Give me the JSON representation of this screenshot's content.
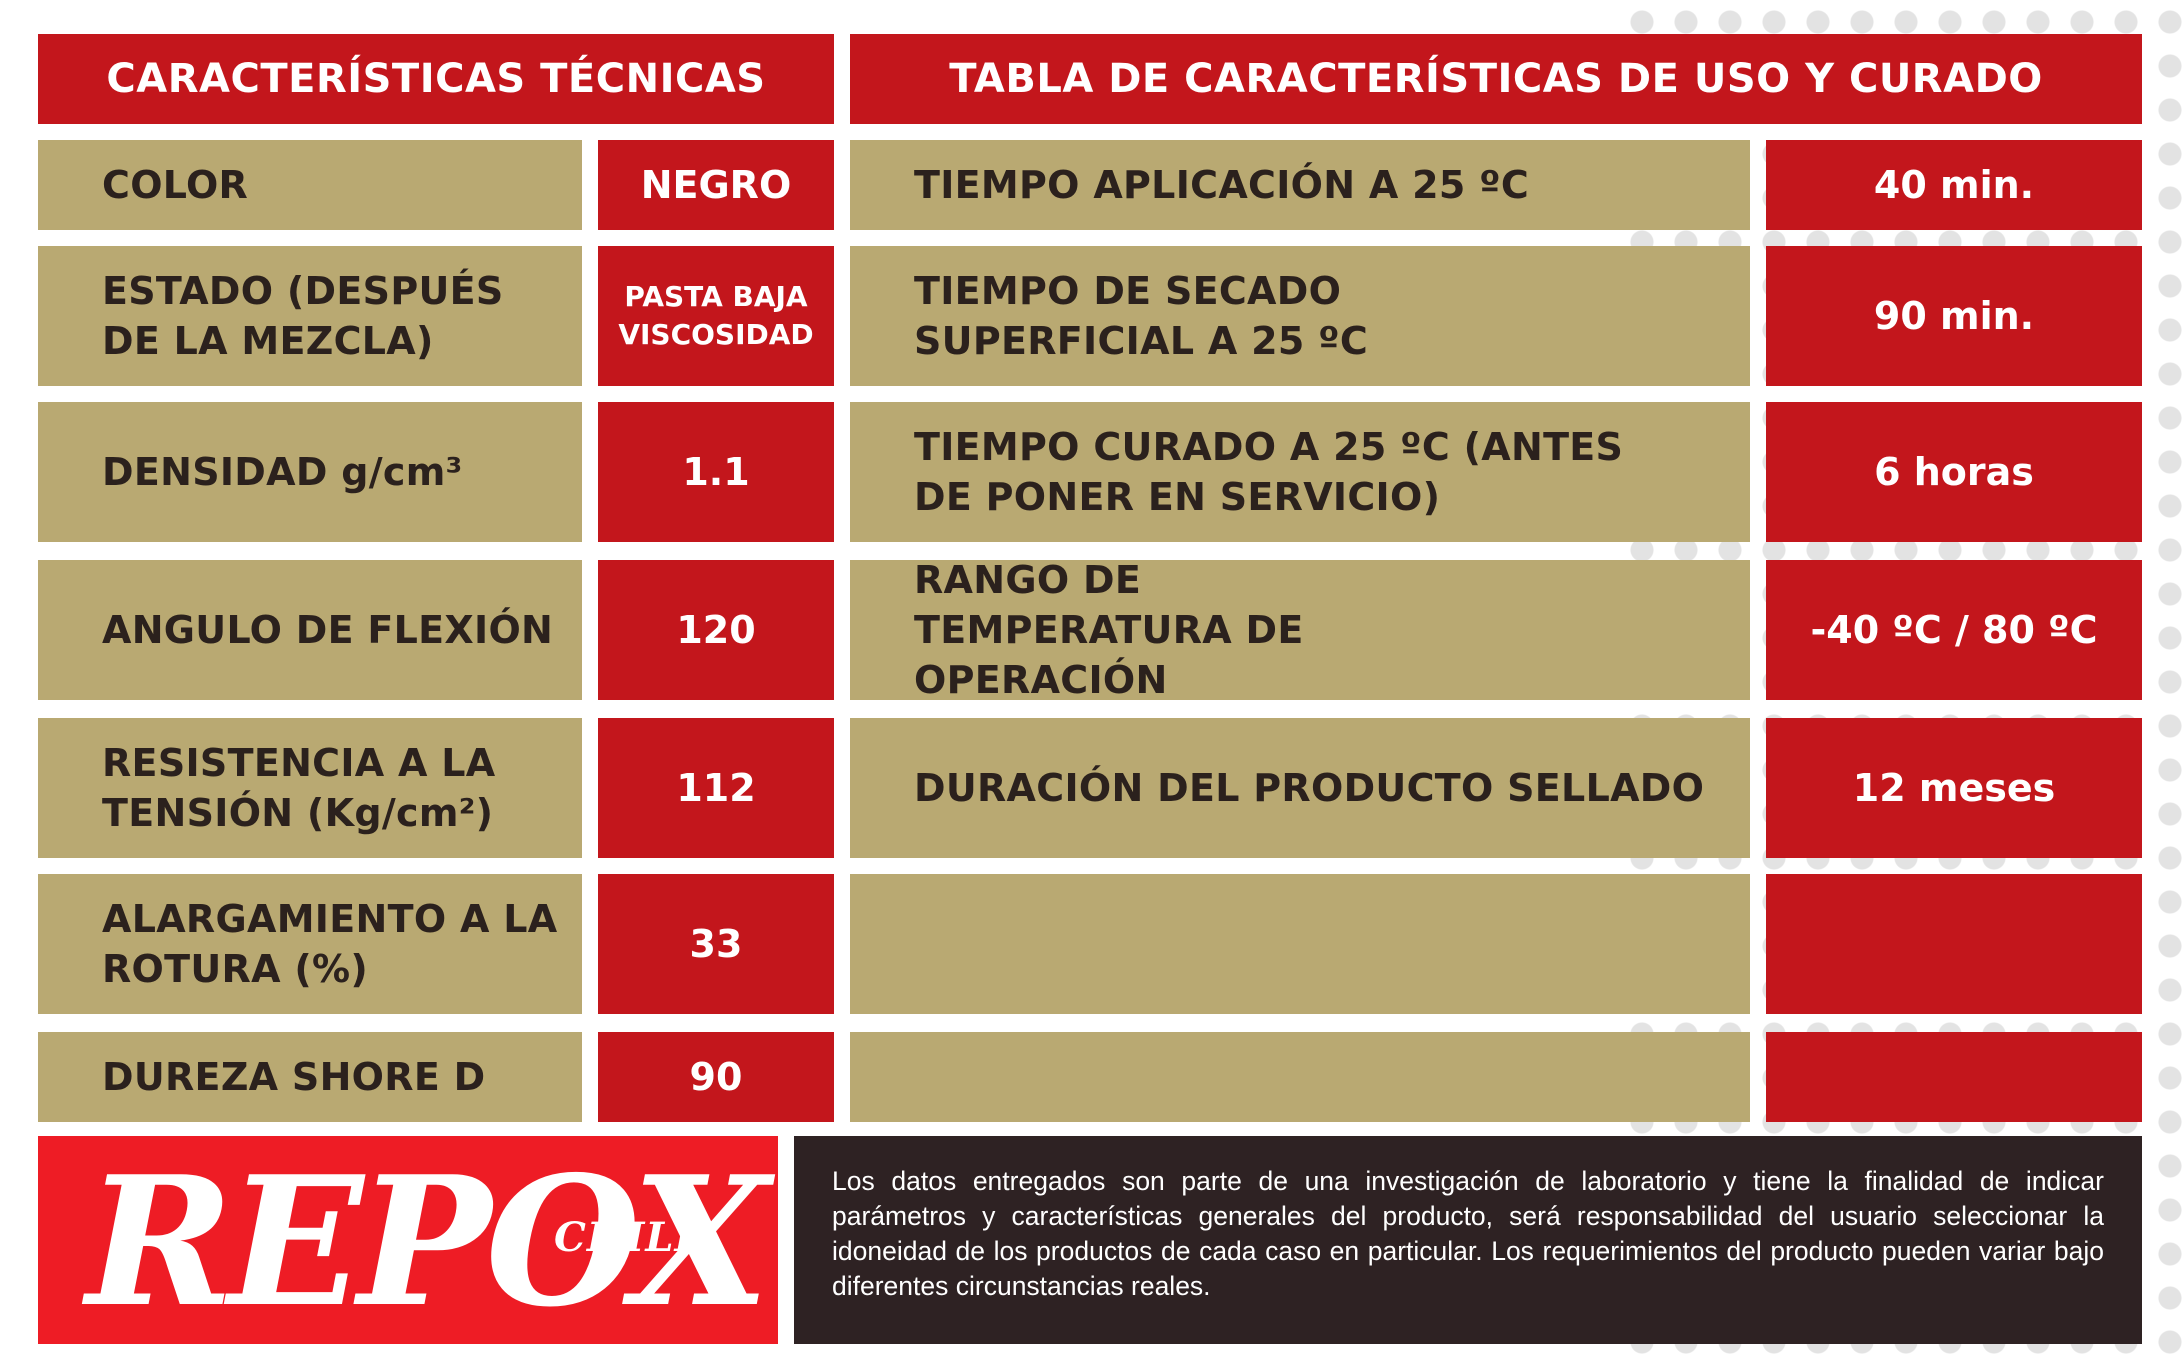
{
  "headers": {
    "left": "CARACTERÍSTICAS TÉCNICAS",
    "right": "TABLA DE CARACTERÍSTICAS DE USO Y CURADO"
  },
  "tech_rows": [
    {
      "label": "COLOR",
      "value": "NEGRO"
    },
    {
      "label": "ESTADO (DESPUÉS DE LA MEZCLA)",
      "value": "PASTA BAJA VISCOSIDAD"
    },
    {
      "label": "DENSIDAD g/cm³",
      "value": "1.1"
    },
    {
      "label": "ANGULO DE FLEXIÓN",
      "value": "120"
    },
    {
      "label": "RESISTENCIA A LA TENSIÓN (Kg/cm²)",
      "value": "112"
    },
    {
      "label": "ALARGAMIENTO A LA ROTURA (%)",
      "value": "33"
    },
    {
      "label": "DUREZA SHORE D",
      "value": "90"
    }
  ],
  "use_rows": [
    {
      "label": "TIEMPO APLICACIÓN A 25 ºC",
      "value": "40 min."
    },
    {
      "label": "TIEMPO DE SECADO SUPERFICIAL A 25 ºC",
      "value": "90 min."
    },
    {
      "label": "TIEMPO CURADO A 25 ºC (ANTES DE PONER EN SERVICIO)",
      "value": "6 horas"
    },
    {
      "label": "RANGO DE TEMPERATURA DE OPERACIÓN",
      "value": "-40 ºC / 80 ºC"
    },
    {
      "label": "DURACIÓN DEL PRODUCTO SELLADO",
      "value": "12 meses"
    },
    {
      "label": "",
      "value": ""
    },
    {
      "label": "",
      "value": ""
    }
  ],
  "logo": {
    "main": "REPOX",
    "sub": "CHILE"
  },
  "disclaimer": "Los datos entregados son parte de una investigación de laboratorio y tiene la finalidad de indicar parámetros y características generales del producto, será responsabilidad del usuario seleccionar la idoneidad de los productos de cada caso en particular. Los requerimientos del producto pueden variar bajo diferentes circunstancias reales.",
  "colors": {
    "red": "#c3161c",
    "tan": "#b9a972",
    "logo_red": "#ee1c25",
    "dark": "#2e2223"
  }
}
